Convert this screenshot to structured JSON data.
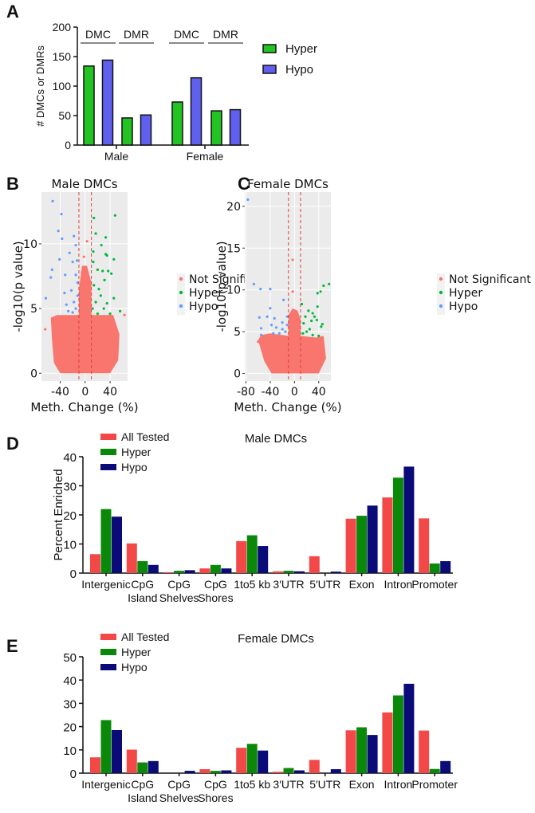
{
  "panel_labels": [
    "A",
    "B",
    "C",
    "D",
    "E"
  ],
  "chart_data": [
    {
      "panel": "A",
      "type": "bar",
      "ylabel": "# DMCs or DMRs",
      "ylim": [
        0,
        200
      ],
      "yticks": [
        0,
        50,
        100,
        150,
        200
      ],
      "groups": [
        "Male",
        "Female"
      ],
      "subgroups": [
        "DMC",
        "DMR",
        "DMC",
        "DMR"
      ],
      "series": [
        {
          "name": "Hyper",
          "color": "#22C322",
          "values": [
            134,
            46,
            73,
            58
          ]
        },
        {
          "name": "Hypo",
          "color": "#6060F0",
          "values": [
            144,
            51,
            114,
            60
          ]
        }
      ],
      "legend": "right"
    },
    {
      "panel": "B",
      "type": "scatter",
      "title": "Male DMCs",
      "xlabel": "Meth. Change (%)",
      "ylabel": "-log10(p value)",
      "xticks": [
        -40,
        0,
        40
      ],
      "yticks": [
        0,
        5,
        10
      ],
      "xlim": [
        -70,
        68
      ],
      "ylim": [
        -0.6,
        14
      ],
      "thresholds_x": [
        -10,
        10
      ],
      "grid": true,
      "legend": "right",
      "categories": [
        {
          "name": "Not Significant",
          "color": "#F8766D"
        },
        {
          "name": "Hyper",
          "color": "#00BA38"
        },
        {
          "name": "Hypo",
          "color": "#619CFF"
        }
      ],
      "points_hypo": [
        [
          -52,
          13.3
        ],
        [
          -38,
          12.3
        ],
        [
          -43,
          11
        ],
        [
          -37,
          10.4
        ],
        [
          -41,
          8.8
        ],
        [
          -55,
          7.4
        ],
        [
          -53,
          8
        ],
        [
          -63,
          5.8
        ],
        [
          -32,
          7.6
        ],
        [
          -25,
          9.3
        ],
        [
          -18,
          10.6
        ],
        [
          -15,
          9.9
        ],
        [
          -13,
          8.7
        ],
        [
          -20,
          8.6
        ],
        [
          -15,
          7.6
        ],
        [
          -22,
          6.4
        ],
        [
          -30,
          5.3
        ],
        [
          -27,
          4.8
        ],
        [
          -18,
          5.5
        ],
        [
          -12,
          6
        ],
        [
          -15,
          5
        ],
        [
          -20,
          4.7
        ],
        [
          -33,
          6.2
        ],
        [
          -12,
          7
        ]
      ],
      "points_hyper": [
        [
          48,
          12.2
        ],
        [
          14,
          12
        ],
        [
          17,
          10.8
        ],
        [
          33,
          10.5
        ],
        [
          26,
          9.9
        ],
        [
          13,
          9.4
        ],
        [
          33,
          9.2
        ],
        [
          35,
          9.1
        ],
        [
          46,
          8.8
        ],
        [
          13,
          8.6
        ],
        [
          20,
          8
        ],
        [
          28,
          7.9
        ],
        [
          37,
          7.9
        ],
        [
          42,
          7.7
        ],
        [
          31,
          7.2
        ],
        [
          14,
          6.8
        ],
        [
          22,
          6.5
        ],
        [
          25,
          6
        ],
        [
          46,
          5.8
        ],
        [
          56,
          4.8
        ],
        [
          17,
          5.5
        ],
        [
          30,
          5
        ],
        [
          40,
          4.6
        ],
        [
          12,
          5
        ],
        [
          20,
          4.6
        ],
        [
          35,
          5.4
        ]
      ],
      "points_not_significant_outliers": [
        [
          -64,
          3.4
        ],
        [
          63,
          4.5
        ],
        [
          -2,
          9
        ],
        [
          3,
          10.2
        ],
        [
          -5,
          7.8
        ]
      ]
    },
    {
      "panel": "C",
      "type": "scatter",
      "title": "Female DMCs",
      "xlabel": "Meth. Change (%)",
      "ylabel": "-log10(p value)",
      "xticks": [
        -80,
        -40,
        0,
        40
      ],
      "yticks": [
        0,
        5,
        10,
        15,
        20
      ],
      "xlim": [
        -82,
        60
      ],
      "ylim": [
        -0.9,
        21.7
      ],
      "thresholds_x": [
        -10,
        10
      ],
      "grid": true,
      "legend": "right",
      "categories": [
        {
          "name": "Not Significant",
          "color": "#F8766D"
        },
        {
          "name": "Hyper",
          "color": "#00BA38"
        },
        {
          "name": "Hypo",
          "color": "#619CFF"
        }
      ],
      "points_hypo": [
        [
          -77,
          20.8
        ],
        [
          -67,
          10.7
        ],
        [
          -56,
          10.1
        ],
        [
          -40,
          10.1
        ],
        [
          -18,
          8.8
        ],
        [
          -40,
          7.8
        ],
        [
          -58,
          6.7
        ],
        [
          -45,
          6.8
        ],
        [
          -33,
          6.6
        ],
        [
          -55,
          5.4
        ],
        [
          -55,
          4.6
        ],
        [
          -38,
          5.8
        ],
        [
          -30,
          5.5
        ],
        [
          -20,
          6.1
        ],
        [
          -12,
          6.8
        ],
        [
          -15,
          5
        ],
        [
          -25,
          4.8
        ],
        [
          -35,
          4.8
        ],
        [
          -12,
          5.8
        ],
        [
          -20,
          5.3
        ]
      ],
      "points_hyper": [
        [
          57,
          10.7
        ],
        [
          48,
          10.5
        ],
        [
          38,
          9.6
        ],
        [
          43,
          9.8
        ],
        [
          38,
          8
        ],
        [
          12,
          8.3
        ],
        [
          23,
          7.5
        ],
        [
          30,
          7.2
        ],
        [
          18,
          6.8
        ],
        [
          33,
          6.8
        ],
        [
          37,
          6.4
        ],
        [
          46,
          5.9
        ],
        [
          44,
          5.6
        ],
        [
          15,
          6
        ],
        [
          25,
          5.3
        ],
        [
          20,
          5
        ],
        [
          30,
          4.6
        ],
        [
          14,
          4.8
        ],
        [
          40,
          4.5
        ],
        [
          28,
          6.3
        ]
      ],
      "points_not_significant_outliers": [
        [
          -3,
          13.6
        ],
        [
          -3,
          9.8
        ],
        [
          -60,
          3.8
        ]
      ]
    },
    {
      "panel": "D",
      "type": "bar",
      "title": "Male DMCs",
      "ylabel": "Percent Enriched",
      "ylim": [
        0,
        40
      ],
      "yticks": [
        0,
        10,
        20,
        30,
        40
      ],
      "categories": [
        "Intergenic",
        "CpG\nIsland",
        "CpG\nShelves",
        "CpG\nShores",
        "1to5 kb",
        "3′UTR",
        "5′UTR",
        "Exon",
        "Intron",
        "Promoter"
      ],
      "series": [
        {
          "name": "All Tested",
          "color": "#F24848",
          "values": [
            6.5,
            10.2,
            0.3,
            1.6,
            11,
            0.6,
            5.8,
            18.7,
            26,
            18.8
          ]
        },
        {
          "name": "Hyper",
          "color": "#0A880A",
          "values": [
            22,
            4.1,
            0.8,
            2.8,
            13,
            0.8,
            0,
            19.7,
            32.8,
            3.3
          ]
        },
        {
          "name": "Hypo",
          "color": "#0A0A78",
          "values": [
            19.4,
            2.8,
            1,
            1.6,
            9.3,
            0.6,
            0.5,
            23.2,
            36.6,
            4.1
          ]
        }
      ],
      "legend": "top-left"
    },
    {
      "panel": "E",
      "type": "bar",
      "title": "Female DMCs",
      "ylabel": "",
      "ylim": [
        0,
        50
      ],
      "yticks": [
        0,
        10,
        20,
        30,
        40,
        50
      ],
      "categories": [
        "Intergenic",
        "CpG\nIsland",
        "CpG\nShelves",
        "CpG\nShores",
        "1to5 kb",
        "3′UTR",
        "5′UTR",
        "Exon",
        "Intron",
        "Promoter"
      ],
      "series": [
        {
          "name": "All Tested",
          "color": "#F24848",
          "values": [
            6.8,
            10.1,
            0,
            1.7,
            10.9,
            0.6,
            5.7,
            18.4,
            26.1,
            18.3
          ]
        },
        {
          "name": "Hyper",
          "color": "#0A880A",
          "values": [
            22.8,
            4.6,
            0,
            1,
            12.6,
            2.2,
            0,
            19.7,
            33.4,
            1.8
          ]
        },
        {
          "name": "Hypo",
          "color": "#0A0A78",
          "values": [
            18.5,
            5.2,
            1,
            1.2,
            9.7,
            1.2,
            1.7,
            16.4,
            38.4,
            5.2
          ]
        }
      ],
      "legend": "top-left"
    }
  ]
}
